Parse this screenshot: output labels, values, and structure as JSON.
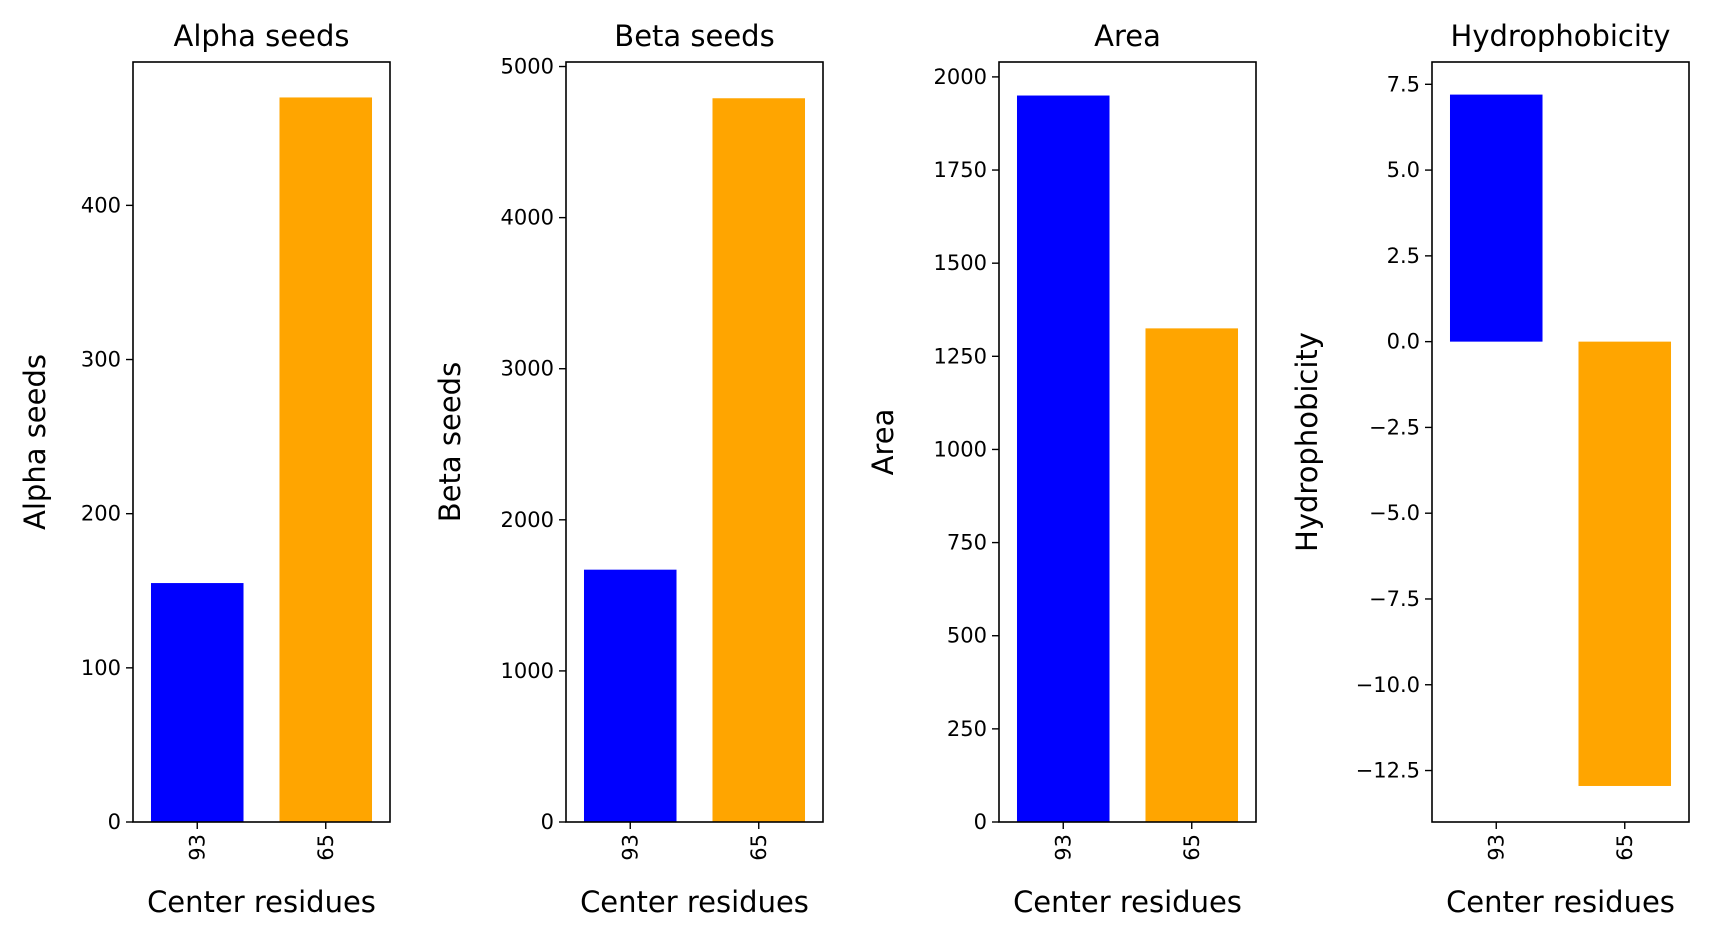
{
  "chart_data": [
    {
      "type": "bar",
      "title": "Alpha seeds",
      "xlabel": "Center residues",
      "ylabel": "Alpha seeds",
      "categories": [
        "93",
        "65"
      ],
      "values": [
        155,
        470
      ],
      "colors": [
        "#0000ff",
        "#ffa500"
      ],
      "ylim": [
        0,
        493
      ],
      "yticks": [
        0,
        100,
        200,
        300,
        400
      ],
      "ytick_labels": [
        "0",
        "100",
        "200",
        "300",
        "400"
      ]
    },
    {
      "type": "bar",
      "title": "Beta seeds",
      "xlabel": "Center residues",
      "ylabel": "Beta seeds",
      "categories": [
        "93",
        "65"
      ],
      "values": [
        1670,
        4790
      ],
      "colors": [
        "#0000ff",
        "#ffa500"
      ],
      "ylim": [
        0,
        5030
      ],
      "yticks": [
        0,
        1000,
        2000,
        3000,
        4000,
        5000
      ],
      "ytick_labels": [
        "0",
        "1000",
        "2000",
        "3000",
        "4000",
        "5000"
      ]
    },
    {
      "type": "bar",
      "title": "Area",
      "xlabel": "Center residues",
      "ylabel": "Area",
      "categories": [
        "93",
        "65"
      ],
      "values": [
        1950,
        1325
      ],
      "colors": [
        "#0000ff",
        "#ffa500"
      ],
      "ylim": [
        0,
        2040
      ],
      "yticks": [
        0,
        250,
        500,
        750,
        1000,
        1250,
        1500,
        1750,
        2000
      ],
      "ytick_labels": [
        "0",
        "250",
        "500",
        "750",
        "1000",
        "1250",
        "1500",
        "1750",
        "2000"
      ]
    },
    {
      "type": "bar",
      "title": "Hydrophobicity",
      "xlabel": "Center residues",
      "ylabel": "Hydrophobicity",
      "categories": [
        "93",
        "65"
      ],
      "values": [
        7.2,
        -12.95
      ],
      "colors": [
        "#0000ff",
        "#ffa500"
      ],
      "ylim": [
        -14.0,
        8.15
      ],
      "yticks": [
        7.5,
        5.0,
        2.5,
        0.0,
        -2.5,
        -5.0,
        -7.5,
        -10.0,
        -12.5
      ],
      "ytick_labels": [
        "7.5",
        "5.0",
        "2.5",
        "0.0",
        "−2.5",
        "−5.0",
        "−7.5",
        "−10.0",
        "−12.5"
      ]
    }
  ]
}
